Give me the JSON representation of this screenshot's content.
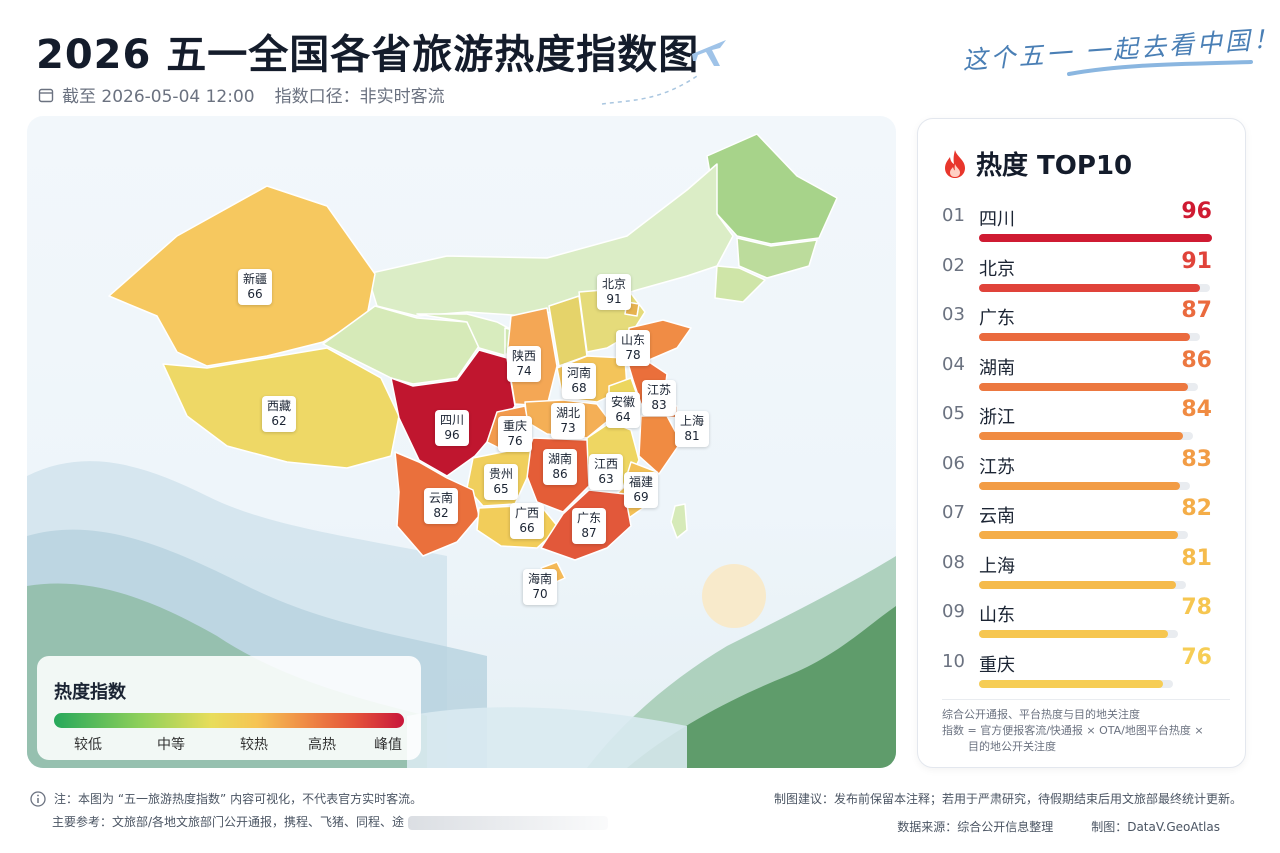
{
  "header": {
    "title": "2026 五一全国各省旅游热度指数图",
    "as_of": "截至 2026-05-04 12:00",
    "metric": "指数口径：非实时客流",
    "slogan": "这个五一 一起去看中国！"
  },
  "chart_data": {
    "type": "choropleth-map",
    "provinces": [
      {
        "name": "新疆",
        "value": 66,
        "color": "#f6c85f"
      },
      {
        "name": "西藏",
        "value": 62,
        "color": "#eed866"
      },
      {
        "name": "四川",
        "value": 96,
        "color": "#c0162f"
      },
      {
        "name": "北京",
        "value": 91,
        "color": "#d83a2e"
      },
      {
        "name": "陕西",
        "value": 74,
        "color": "#f4a755"
      },
      {
        "name": "河南",
        "value": 68,
        "color": "#f3c45a"
      },
      {
        "name": "山东",
        "value": 78,
        "color": "#f08c45"
      },
      {
        "name": "江苏",
        "value": 83,
        "color": "#ea6f3b"
      },
      {
        "name": "安徽",
        "value": 64,
        "color": "#ecd65e"
      },
      {
        "name": "湖北",
        "value": 73,
        "color": "#f4af56"
      },
      {
        "name": "重庆",
        "value": 76,
        "color": "#f29a4d"
      },
      {
        "name": "上海",
        "value": 81,
        "color": "#ec7a3e"
      },
      {
        "name": "湖南",
        "value": 86,
        "color": "#e45d37"
      },
      {
        "name": "江西",
        "value": 63,
        "color": "#eed662"
      },
      {
        "name": "贵州",
        "value": 65,
        "color": "#f0cf5d"
      },
      {
        "name": "福建",
        "value": 69,
        "color": "#f3c056"
      },
      {
        "name": "云南",
        "value": 82,
        "color": "#ea703c"
      },
      {
        "name": "广西",
        "value": 66,
        "color": "#f2cd5a"
      },
      {
        "name": "广东",
        "value": 87,
        "color": "#e2583a"
      },
      {
        "name": "海南",
        "value": 70,
        "color": "#f4b957"
      }
    ]
  },
  "legend": {
    "title": "热度指数",
    "labels": [
      "较低",
      "中等",
      "较热",
      "高热",
      "峰值"
    ]
  },
  "top10": {
    "title": "热度 TOP10",
    "items": [
      {
        "rank": "01",
        "name": "四川",
        "value": 96,
        "color": "#cf1b32"
      },
      {
        "rank": "02",
        "name": "北京",
        "value": 91,
        "color": "#e0433a"
      },
      {
        "rank": "03",
        "name": "广东",
        "value": 87,
        "color": "#ea6a3e"
      },
      {
        "rank": "04",
        "name": "湖南",
        "value": 86,
        "color": "#ec7840"
      },
      {
        "rank": "05",
        "name": "浙江",
        "value": 84,
        "color": "#f08b42"
      },
      {
        "rank": "06",
        "name": "江苏",
        "value": 83,
        "color": "#f29c45"
      },
      {
        "rank": "07",
        "name": "云南",
        "value": 82,
        "color": "#f4ad48"
      },
      {
        "rank": "08",
        "name": "上海",
        "value": 81,
        "color": "#f5bb4c"
      },
      {
        "rank": "09",
        "name": "山东",
        "value": 78,
        "color": "#f6c650"
      },
      {
        "rank": "10",
        "name": "重庆",
        "value": 76,
        "color": "#f6cd55"
      }
    ],
    "note_line1": "综合公开通报、平台热度与目的地关注度",
    "note_line2": "指数 = 官方便报客流/快通报 × OTA/地图平台热度 ×",
    "note_line3": "目的地公开关注度"
  },
  "footer": {
    "note": "注：本图为 “五一旅游热度指数” 内容可视化，不代表官方实时客流。",
    "refs": "主要参考：文旅部/各地文旅部门公开通报，携程、飞猪、同程、途",
    "advice": "制图建议：发布前保留本注释；若用于严肃研究，待假期结束后用文旅部最终统计更新。",
    "source": "数据来源：综合公开信息整理",
    "maker": "制图：DataV.GeoAtlas"
  }
}
